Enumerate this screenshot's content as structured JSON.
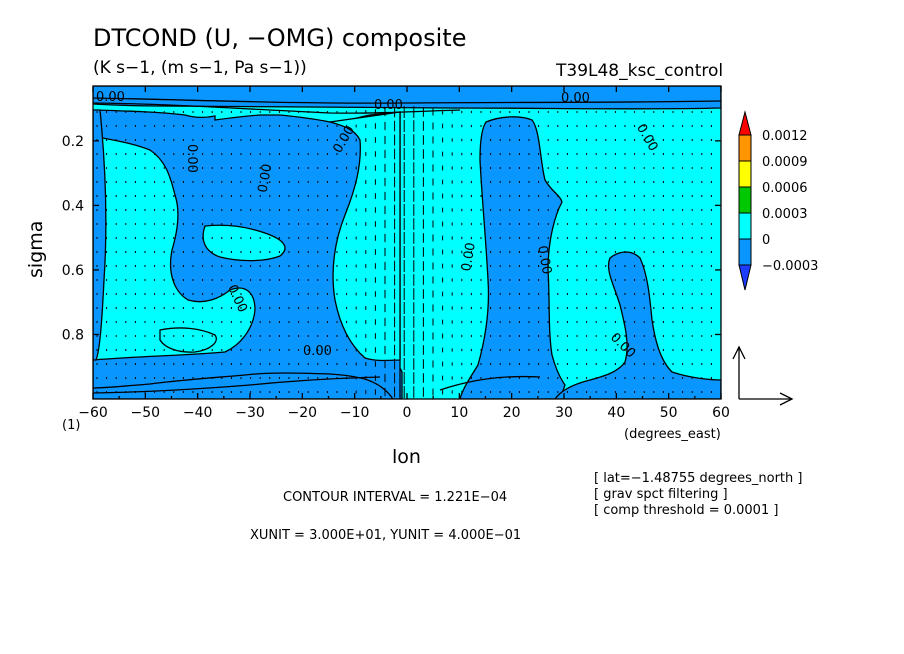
{
  "header": {
    "title": "DTCOND (U, −OMG) composite",
    "units": "(K s−1, (m s−1, Pa s−1))",
    "run": "T39L48_ksc_control"
  },
  "axes": {
    "x_label": "lon",
    "x_unit": "(degrees_east)",
    "y_label": "sigma",
    "corner_index": "(1)"
  },
  "info": {
    "lat": "[ lat=−1.48755 degrees_north ]",
    "filter": "[ grav spct filtering ]",
    "threshold": "[ comp threshold = 0.0001 ]"
  },
  "footer": {
    "contour_interval": "CONTOUR INTERVAL = 1.221E−04",
    "units_scale": "XUNIT = 3.000E+01, YUNIT = 4.000E−01"
  },
  "colors": {
    "negative": "#0A96FF",
    "zero_band": "#00FFFF",
    "positive_1": "#00C800",
    "positive_2": "#FFFF00",
    "positive_3": "#FF9600",
    "positive_4": "#FF0000",
    "lowest": "#1E3CFF"
  },
  "chart_data": {
    "type": "heatmap",
    "x_range": [
      -60,
      60
    ],
    "y_range": [
      1.0,
      0.03
    ],
    "y_inverted": true,
    "x_ticks": [
      "−60",
      "−50",
      "−40",
      "−30",
      "−20",
      "−10",
      "0",
      "10",
      "20",
      "30",
      "40",
      "50",
      "60"
    ],
    "x_tick_values": [
      -60,
      -50,
      -40,
      -30,
      -20,
      -10,
      0,
      10,
      20,
      30,
      40,
      50,
      60
    ],
    "y_ticks": [
      "0.2",
      "0.4",
      "0.6",
      "0.8"
    ],
    "y_tick_values": [
      0.2,
      0.4,
      0.6,
      0.8
    ],
    "colorbar_labels": [
      "0.0012",
      "0.0009",
      "0.0006",
      "0.0003",
      "0",
      "−0.0003"
    ],
    "colorbar_levels": [
      0.0012,
      0.0009,
      0.0006,
      0.0003,
      0,
      -0.0003
    ],
    "contour_label": "0.00",
    "contour_interval": 0.0001221,
    "vector_reference": {
      "xunit": 30,
      "yunit": 0.4
    },
    "grid": false,
    "regions": [
      {
        "level": "negative",
        "x": [
          -60,
          60
        ],
        "y": [
          0.06,
          0.95
        ],
        "note": "background band"
      }
    ]
  }
}
